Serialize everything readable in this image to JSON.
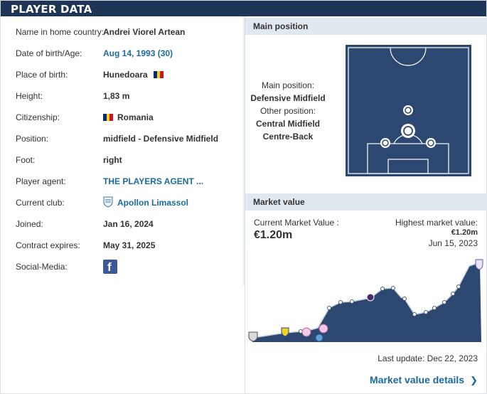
{
  "header": {
    "title": "PLAYER DATA"
  },
  "player": {
    "rows": [
      {
        "label": "Name in home country:",
        "value": "Andrei Viorel Artean"
      },
      {
        "label": "Date of birth/Age:",
        "value": "Aug 14, 1993 (30)"
      },
      {
        "label": "Place of birth:",
        "value": "Hunedoara"
      },
      {
        "label": "Height:",
        "value": "1,83 m"
      },
      {
        "label": "Citizenship:",
        "value": "Romania"
      },
      {
        "label": "Position:",
        "value": "midfield - Defensive Midfield"
      },
      {
        "label": "Foot:",
        "value": "right"
      },
      {
        "label": "Player agent:",
        "value": "THE PLAYERS AGENT ..."
      },
      {
        "label": "Current club:",
        "value": "Apollon Limassol"
      },
      {
        "label": "Joined:",
        "value": "Jan 16, 2024"
      },
      {
        "label": "Contract expires:",
        "value": "May 31, 2025"
      },
      {
        "label": "Social-Media:",
        "value": ""
      }
    ],
    "flag_colors": [
      "#002b7f",
      "#fcd116",
      "#ce1126"
    ],
    "social_icon": "facebook-icon",
    "club_icon": "apollon-crest-icon"
  },
  "position": {
    "title": "Main position",
    "main_label": "Main position:",
    "main_value": "Defensive Midfield",
    "other_label": "Other position:",
    "other_values": [
      "Central Midfield",
      "Centre-Back"
    ]
  },
  "market": {
    "title": "Market value",
    "current_label": "Current Market Value :",
    "current_value": "€1.20m",
    "highest_label": "Highest market value:",
    "highest_value": "€1.20m",
    "highest_date": "Jun 15, 2023",
    "last_update": "Last update: Dec 22, 2023",
    "details_label": "Market value details",
    "chart_fill": "#2c4870"
  },
  "colors": {
    "accent": "#1d3557",
    "link": "#1a6aa0",
    "panel": "#e1e9f0",
    "pitch": "#2c4870"
  }
}
